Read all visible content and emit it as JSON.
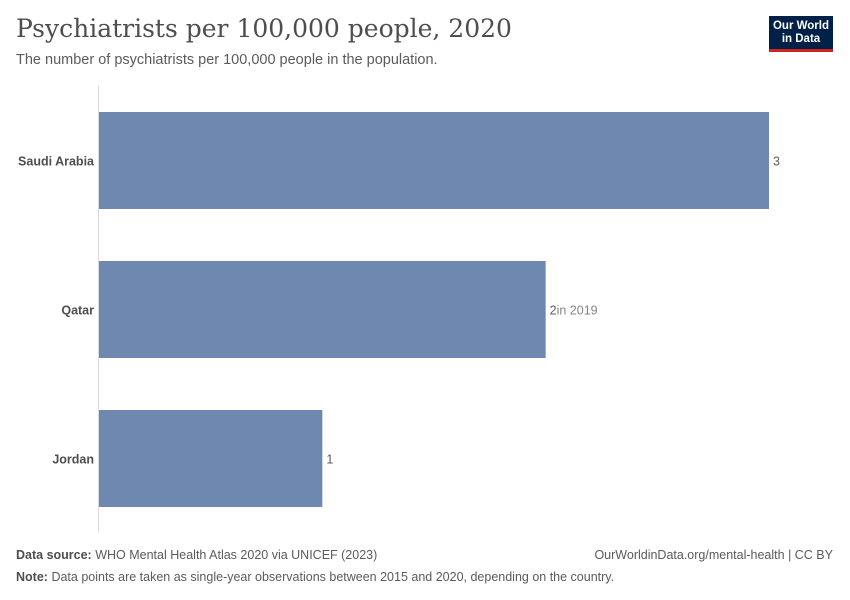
{
  "header": {
    "title": "Psychiatrists per 100,000 people, 2020",
    "subtitle": "The number of psychiatrists per 100,000 people in the population.",
    "logo_line1": "Our World",
    "logo_line2": "in Data"
  },
  "chart_data": {
    "type": "bar",
    "orientation": "horizontal",
    "title": "Psychiatrists per 100,000 people, 2020",
    "subtitle": "The number of psychiatrists per 100,000 people in the population.",
    "categories": [
      "Saudi Arabia",
      "Qatar",
      "Jordan"
    ],
    "values": [
      3,
      2,
      1
    ],
    "value_labels": [
      "3",
      "2",
      "1"
    ],
    "annotations": [
      "",
      "in 2019",
      ""
    ],
    "xlim": [
      0,
      3
    ],
    "bar_color": "#6f88b0",
    "grid": false
  },
  "footer": {
    "source_label": "Data source:",
    "source_text": "WHO Mental Health Atlas 2020 via UNICEF (2023)",
    "link_text": "OurWorldinData.org/mental-health | CC BY",
    "note_label": "Note:",
    "note_text": "Data points are taken as single-year observations between 2015 and 2020, depending on the country."
  }
}
